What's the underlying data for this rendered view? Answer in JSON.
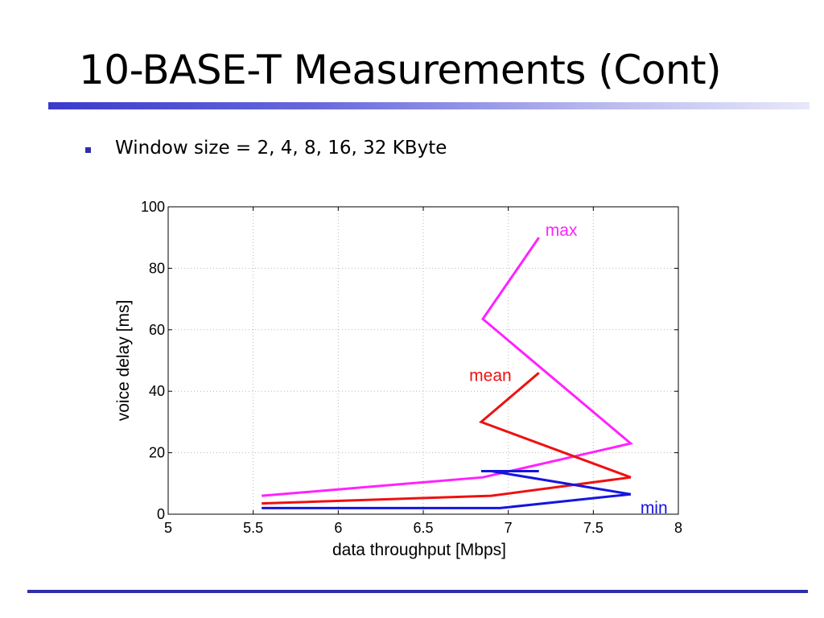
{
  "slide": {
    "title": "10-BASE-T Measurements (Cont)",
    "bullet": "Window size = 2, 4, 8, 16, 32 KByte"
  },
  "chart_data": {
    "type": "line",
    "title": "",
    "xlabel": "data throughput [Mbps]",
    "ylabel": "voice delay [ms]",
    "xlim": [
      5,
      8
    ],
    "ylim": [
      0,
      100
    ],
    "xticks": [
      5,
      5.5,
      6,
      6.5,
      7,
      7.5,
      8
    ],
    "xtick_labels": [
      "5",
      "5.5",
      "6",
      "6.5",
      "7",
      "7.5",
      "8"
    ],
    "yticks": [
      0,
      20,
      40,
      60,
      80,
      100
    ],
    "ytick_labels": [
      "0",
      "20",
      "40",
      "60",
      "80",
      "100"
    ],
    "grid": true,
    "series": [
      {
        "name": "max",
        "color": "#ff22ff",
        "points": [
          [
            5.55,
            6
          ],
          [
            6.85,
            12
          ],
          [
            7.72,
            23
          ],
          [
            6.85,
            63.5
          ],
          [
            7.18,
            90
          ]
        ]
      },
      {
        "name": "mean",
        "color": "#ee1111",
        "points": [
          [
            5.55,
            3.5
          ],
          [
            6.9,
            6
          ],
          [
            7.72,
            12
          ],
          [
            6.84,
            30
          ],
          [
            7.18,
            46
          ]
        ]
      },
      {
        "name": "min",
        "color": "#1515dd",
        "points": [
          [
            5.55,
            2
          ],
          [
            6.95,
            2
          ],
          [
            7.72,
            6.5
          ],
          [
            6.9,
            14
          ],
          [
            6.84,
            14
          ],
          [
            7.18,
            14
          ]
        ]
      }
    ]
  }
}
